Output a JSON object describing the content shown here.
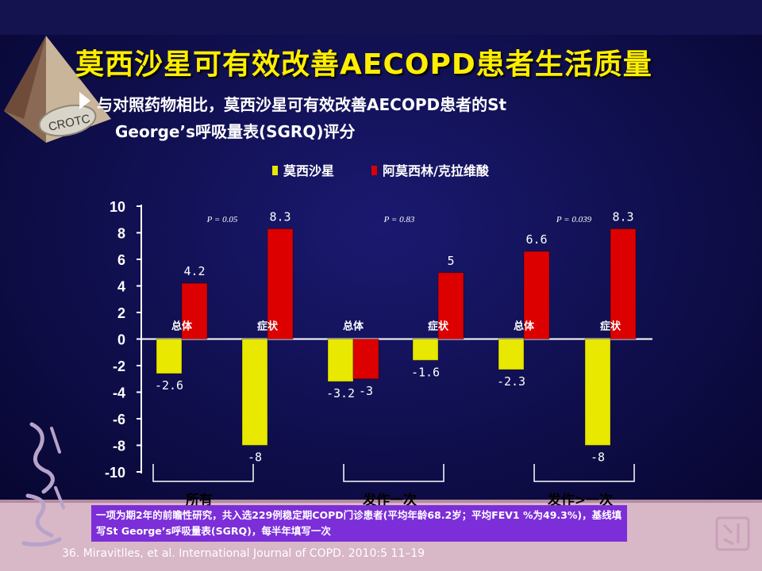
{
  "slide": {
    "title": "莫西沙星可有效改善AECOPD患者生活质量",
    "subtitle_line1": "与对照药物相比，莫西沙星可有效改善AECOPD患者的St",
    "subtitle_line2": "George’s呼吸量表(SGRQ)评分",
    "logo_text": "CROTC",
    "note": "一项为期2年的前瞻性研究，共入选229例稳定期COPD门诊患者(平均年龄68.2岁；平均FEV1 %为49.3%)，基线填写St George’s呼吸量表(SGRQ)，每半年填写一次",
    "citation": "36. Miravitlles, et al. International Journal of COPD. 2010:5 11–19",
    "colors": {
      "title": "#ffee00",
      "background": "#0d0c45",
      "note_bg": "#7c2ed8"
    }
  },
  "chart_data": {
    "type": "bar",
    "ylim": [
      -10,
      10
    ],
    "yticks": [
      10,
      8,
      6,
      4,
      2,
      0,
      -2,
      -4,
      -6,
      -8,
      -10
    ],
    "legend_position": "top",
    "grid": false,
    "categories": [
      "总体",
      "症状",
      "总体",
      "症状",
      "总体",
      "症状"
    ],
    "groups": [
      {
        "label": "所有",
        "pvalue": "P = 0.05"
      },
      {
        "label": "发作一次",
        "pvalue": "P = 0.83"
      },
      {
        "label": "发作>一次",
        "pvalue": "P = 0.039"
      }
    ],
    "series": [
      {
        "name": "莫西沙星",
        "color": "#e8e800",
        "values": [
          -2.6,
          -8,
          -3.2,
          -1.6,
          -2.3,
          -8
        ],
        "labels": [
          "-2.6",
          "-8",
          "-3.2",
          "-1.6",
          "-2.3",
          "-8"
        ]
      },
      {
        "name": "阿莫西林/克拉维酸",
        "color": "#dd0000",
        "values": [
          4.2,
          8.3,
          -3,
          5,
          6.6,
          8.3
        ],
        "labels": [
          "4.2",
          "8.3",
          "-3",
          "5",
          "6.6",
          "8.3"
        ]
      }
    ]
  }
}
